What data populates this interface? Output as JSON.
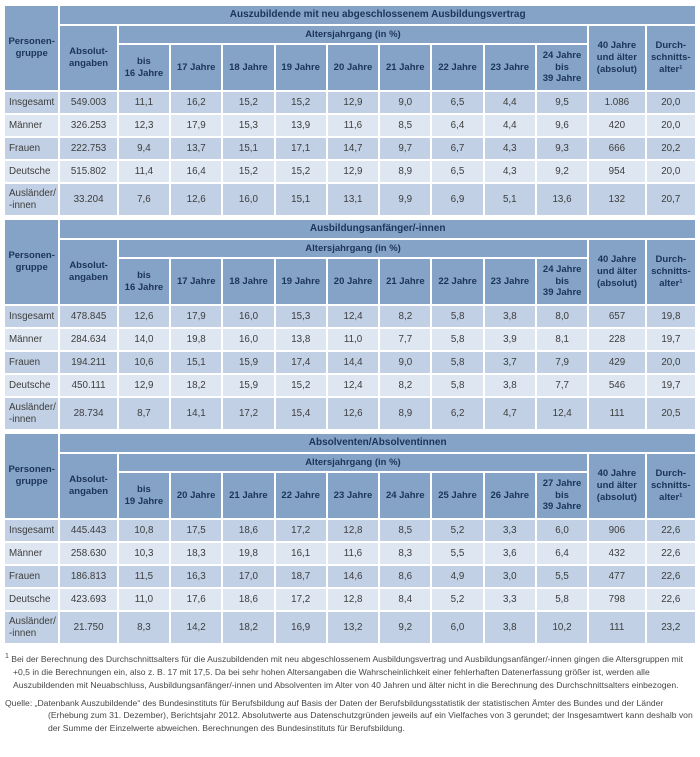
{
  "colors": {
    "header_bg": "#85a2c7",
    "header_text": "#1b3556",
    "row_dark_bg": "#c1d0e4",
    "row_light_bg": "#dde6f1",
    "body_text": "#3d3d3d",
    "page_bg": "#ffffff"
  },
  "header": {
    "person_group": "Personen-\ngruppe",
    "absolute": "Absolut-\nangaben",
    "age_cohort": "Altersjahrgang (in %)",
    "older": "40 Jahre\nund älter\n(absolut)",
    "avg_age": "Durch-\nschnitts-\nalter¹"
  },
  "sections": [
    {
      "title": "Auszubildende mit neu abgeschlossenem Ausbildungsvertrag",
      "age_columns": [
        "bis\n16 Jahre",
        "17 Jahre",
        "18 Jahre",
        "19 Jahre",
        "20 Jahre",
        "21 Jahre",
        "22 Jahre",
        "23 Jahre",
        "24 Jahre\nbis\n39 Jahre"
      ],
      "rows": [
        {
          "label": "Insgesamt",
          "absolute": "549.003",
          "ages": [
            "11,1",
            "16,2",
            "15,2",
            "15,2",
            "12,9",
            "9,0",
            "6,5",
            "4,4",
            "9,5"
          ],
          "older": "1.086",
          "avg": "20,0"
        },
        {
          "label": "Männer",
          "absolute": "326.253",
          "ages": [
            "12,3",
            "17,9",
            "15,3",
            "13,9",
            "11,6",
            "8,5",
            "6,4",
            "4,4",
            "9,6"
          ],
          "older": "420",
          "avg": "20,0"
        },
        {
          "label": "Frauen",
          "absolute": "222.753",
          "ages": [
            "9,4",
            "13,7",
            "15,1",
            "17,1",
            "14,7",
            "9,7",
            "6,7",
            "4,3",
            "9,3"
          ],
          "older": "666",
          "avg": "20,2"
        },
        {
          "label": "Deutsche",
          "absolute": "515.802",
          "ages": [
            "11,4",
            "16,4",
            "15,2",
            "15,2",
            "12,9",
            "8,9",
            "6,5",
            "4,3",
            "9,2"
          ],
          "older": "954",
          "avg": "20,0"
        },
        {
          "label": "Ausländer/\n-innen",
          "absolute": "33.204",
          "ages": [
            "7,6",
            "12,6",
            "16,0",
            "15,1",
            "13,1",
            "9,9",
            "6,9",
            "5,1",
            "13,6"
          ],
          "older": "132",
          "avg": "20,7"
        }
      ]
    },
    {
      "title": "Ausbildungsanfänger/-innen",
      "age_columns": [
        "bis\n16 Jahre",
        "17 Jahre",
        "18 Jahre",
        "19 Jahre",
        "20 Jahre",
        "21 Jahre",
        "22 Jahre",
        "23 Jahre",
        "24 Jahre\nbis\n39 Jahre"
      ],
      "rows": [
        {
          "label": "Insgesamt",
          "absolute": "478.845",
          "ages": [
            "12,6",
            "17,9",
            "16,0",
            "15,3",
            "12,4",
            "8,2",
            "5,8",
            "3,8",
            "8,0"
          ],
          "older": "657",
          "avg": "19,8"
        },
        {
          "label": "Männer",
          "absolute": "284.634",
          "ages": [
            "14,0",
            "19,8",
            "16,0",
            "13,8",
            "11,0",
            "7,7",
            "5,8",
            "3,9",
            "8,1"
          ],
          "older": "228",
          "avg": "19,7"
        },
        {
          "label": "Frauen",
          "absolute": "194.211",
          "ages": [
            "10,6",
            "15,1",
            "15,9",
            "17,4",
            "14,4",
            "9,0",
            "5,8",
            "3,7",
            "7,9"
          ],
          "older": "429",
          "avg": "20,0"
        },
        {
          "label": "Deutsche",
          "absolute": "450.111",
          "ages": [
            "12,9",
            "18,2",
            "15,9",
            "15,2",
            "12,4",
            "8,2",
            "5,8",
            "3,8",
            "7,7"
          ],
          "older": "546",
          "avg": "19,7"
        },
        {
          "label": "Ausländer/\n-innen",
          "absolute": "28.734",
          "ages": [
            "8,7",
            "14,1",
            "17,2",
            "15,4",
            "12,6",
            "8,9",
            "6,2",
            "4,7",
            "12,4"
          ],
          "older": "111",
          "avg": "20,5"
        }
      ]
    },
    {
      "title": "Absolventen/Absolventinnen",
      "age_columns": [
        "bis\n19 Jahre",
        "20 Jahre",
        "21 Jahre",
        "22 Jahre",
        "23 Jahre",
        "24 Jahre",
        "25 Jahre",
        "26 Jahre",
        "27 Jahre\nbis\n39 Jahre"
      ],
      "rows": [
        {
          "label": "Insgesamt",
          "absolute": "445.443",
          "ages": [
            "10,8",
            "17,5",
            "18,6",
            "17,2",
            "12,8",
            "8,5",
            "5,2",
            "3,3",
            "6,0"
          ],
          "older": "906",
          "avg": "22,6"
        },
        {
          "label": "Männer",
          "absolute": "258.630",
          "ages": [
            "10,3",
            "18,3",
            "19,8",
            "16,1",
            "11,6",
            "8,3",
            "5,5",
            "3,6",
            "6,4"
          ],
          "older": "432",
          "avg": "22,6"
        },
        {
          "label": "Frauen",
          "absolute": "186.813",
          "ages": [
            "11,5",
            "16,3",
            "17,0",
            "18,7",
            "14,6",
            "8,6",
            "4,9",
            "3,0",
            "5,5"
          ],
          "older": "477",
          "avg": "22,6"
        },
        {
          "label": "Deutsche",
          "absolute": "423.693",
          "ages": [
            "11,0",
            "17,6",
            "18,6",
            "17,2",
            "12,8",
            "8,4",
            "5,2",
            "3,3",
            "5,8"
          ],
          "older": "798",
          "avg": "22,6"
        },
        {
          "label": "Ausländer/\n-innen",
          "absolute": "21.750",
          "ages": [
            "8,3",
            "14,2",
            "18,2",
            "16,9",
            "13,2",
            "9,2",
            "6,0",
            "3,8",
            "10,2"
          ],
          "older": "111",
          "avg": "23,2"
        }
      ]
    }
  ],
  "footnotes": {
    "marker": "1",
    "note": " Bei der Berechnung des Durchschnittsalters für die Auszubildenden mit neu abgeschlossenem Ausbildungsvertrag und Ausbildungsanfänger/-innen gingen die Altersgruppen mit +0,5 in die Berechnungen ein, also z. B. 17 mit 17,5. Da bei sehr hohen Altersangaben die Wahrscheinlichkeit einer fehlerhaften Datenerfassung größer ist, werden alle Auszubildenden mit Neuabschluss, Ausbildungsanfänger/-innen und Absolventen im Alter von 40 Jahren und älter nicht in die Berechnung des Durchschnittsalters einbezogen.",
    "source": "Quelle: „Datenbank Auszubildende“ des Bundesinstituts für Berufsbildung auf Basis der Daten der Berufsbildungsstatistik der statistischen Ämter des Bundes und der Länder (Erhebung zum 31. Dezember), Berichtsjahr 2012. Absolutwerte aus Datenschutzgründen jeweils auf ein Vielfaches von 3 gerundet; der Insgesamtwert kann deshalb von der Summe der Einzelwerte abweichen. Berechnungen des Bundesinstituts für Berufsbildung."
  }
}
